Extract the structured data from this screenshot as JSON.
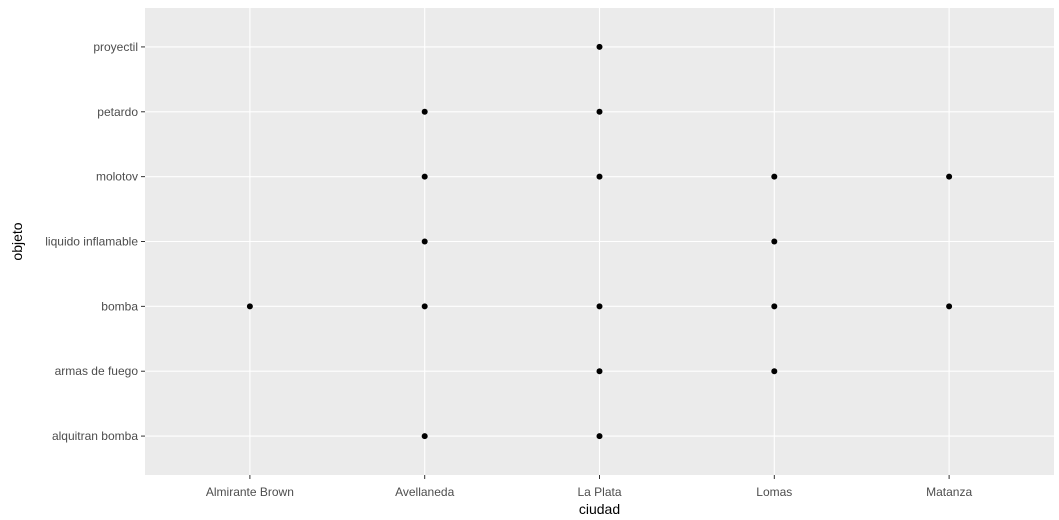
{
  "chart_data": {
    "type": "scatter",
    "title": "",
    "xlabel": "ciudad",
    "ylabel": "objeto",
    "x_categories": [
      "Almirante Brown",
      "Avellaneda",
      "La Plata",
      "Lomas",
      "Matanza"
    ],
    "y_categories": [
      "alquitran bomba",
      "armas de fuego",
      "bomba",
      "liquido inflamable",
      "molotov",
      "petardo",
      "proyectil"
    ],
    "points": [
      {
        "x": "Almirante Brown",
        "y": "bomba"
      },
      {
        "x": "Avellaneda",
        "y": "alquitran bomba"
      },
      {
        "x": "Avellaneda",
        "y": "bomba"
      },
      {
        "x": "Avellaneda",
        "y": "liquido inflamable"
      },
      {
        "x": "Avellaneda",
        "y": "molotov"
      },
      {
        "x": "Avellaneda",
        "y": "petardo"
      },
      {
        "x": "La Plata",
        "y": "alquitran bomba"
      },
      {
        "x": "La Plata",
        "y": "armas de fuego"
      },
      {
        "x": "La Plata",
        "y": "bomba"
      },
      {
        "x": "La Plata",
        "y": "molotov"
      },
      {
        "x": "La Plata",
        "y": "petardo"
      },
      {
        "x": "La Plata",
        "y": "proyectil"
      },
      {
        "x": "Lomas",
        "y": "armas de fuego"
      },
      {
        "x": "Lomas",
        "y": "bomba"
      },
      {
        "x": "Lomas",
        "y": "liquido inflamable"
      },
      {
        "x": "Lomas",
        "y": "molotov"
      },
      {
        "x": "Matanza",
        "y": "bomba"
      },
      {
        "x": "Matanza",
        "y": "molotov"
      }
    ],
    "grid": true,
    "legend": "none",
    "colors": {
      "panel_background": "#ebebeb",
      "grid_line": "#ffffff",
      "point": "#000000",
      "tick_label": "#4d4d4d",
      "tick_mark": "#333333",
      "axis_title": "#000000"
    }
  }
}
